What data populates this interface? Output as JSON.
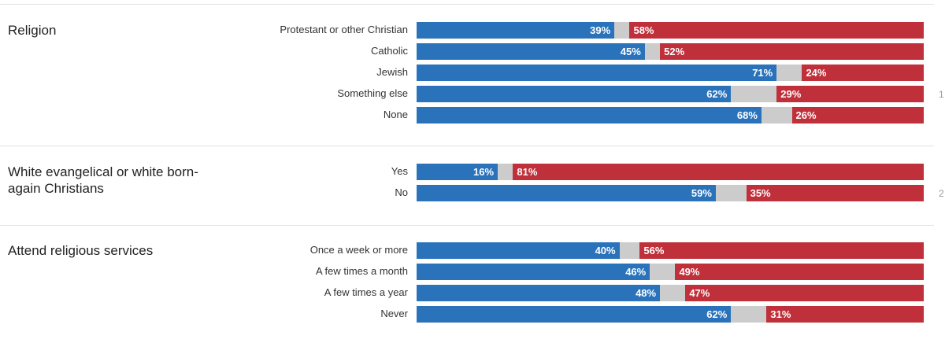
{
  "colors": {
    "democrat": "#2a73bb",
    "other": "#cccccc",
    "republican": "#c0303a"
  },
  "groups": [
    {
      "title": "Religion",
      "rows": [
        {
          "label": "Protestant or other Christian",
          "dem": 39,
          "rep": 58,
          "dem_label": "39%",
          "rep_label": "58%",
          "extra": ""
        },
        {
          "label": "Catholic",
          "dem": 45,
          "rep": 52,
          "dem_label": "45%",
          "rep_label": "52%",
          "extra": ""
        },
        {
          "label": "Jewish",
          "dem": 71,
          "rep": 24,
          "dem_label": "71%",
          "rep_label": "24%",
          "extra": ""
        },
        {
          "label": "Something else",
          "dem": 62,
          "rep": 29,
          "dem_label": "62%",
          "rep_label": "29%",
          "extra": "1"
        },
        {
          "label": "None",
          "dem": 68,
          "rep": 26,
          "dem_label": "68%",
          "rep_label": "26%",
          "extra": ""
        }
      ]
    },
    {
      "title": "White evangelical or white born-again Christians",
      "rows": [
        {
          "label": "Yes",
          "dem": 16,
          "rep": 81,
          "dem_label": "16%",
          "rep_label": "81%",
          "extra": ""
        },
        {
          "label": "No",
          "dem": 59,
          "rep": 35,
          "dem_label": "59%",
          "rep_label": "35%",
          "extra": "2"
        }
      ]
    },
    {
      "title": "Attend religious services",
      "rows": [
        {
          "label": "Once a week or more",
          "dem": 40,
          "rep": 56,
          "dem_label": "40%",
          "rep_label": "56%",
          "extra": ""
        },
        {
          "label": "A few times a month",
          "dem": 46,
          "rep": 49,
          "dem_label": "46%",
          "rep_label": "49%",
          "extra": ""
        },
        {
          "label": "A few times a year",
          "dem": 48,
          "rep": 47,
          "dem_label": "48%",
          "rep_label": "47%",
          "extra": ""
        },
        {
          "label": "Never",
          "dem": 62,
          "rep": 31,
          "dem_label": "62%",
          "rep_label": "31%",
          "extra": ""
        }
      ]
    }
  ],
  "chart_data": {
    "type": "bar",
    "orientation": "horizontal",
    "stacked": true,
    "ylim": [
      0,
      100
    ],
    "categories": [
      "Protestant or other Christian",
      "Catholic",
      "Jewish",
      "Something else",
      "None",
      "Yes",
      "No",
      "Once a week or more",
      "A few times a month",
      "A few times a year",
      "Never"
    ],
    "series": [
      {
        "values": [
          39,
          45,
          71,
          62,
          68,
          16,
          59,
          40,
          46,
          48,
          62
        ]
      },
      {
        "values": [
          3,
          3,
          5,
          9,
          6,
          3,
          6,
          4,
          5,
          5,
          7
        ]
      },
      {
        "values": [
          58,
          52,
          24,
          29,
          26,
          81,
          35,
          56,
          49,
          47,
          31
        ]
      }
    ]
  }
}
